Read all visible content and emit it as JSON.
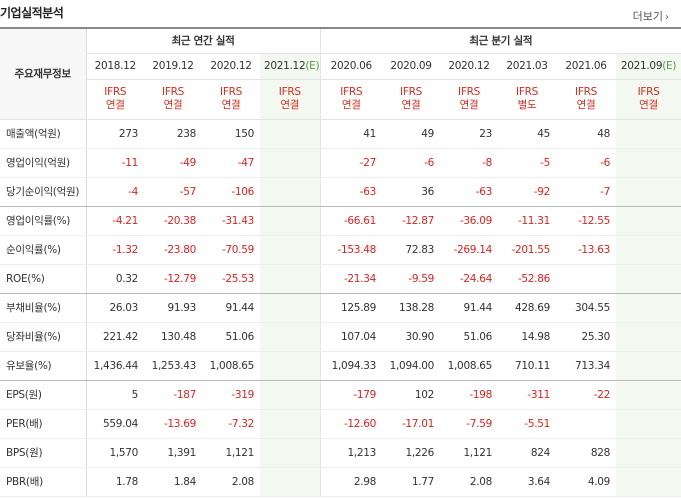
{
  "title": "기업실적분석",
  "more_label": "더보기",
  "header": {
    "row_label": "주요재무정보",
    "annual_group": "최근 연간 실적",
    "quarter_group": "최근 분기 실적",
    "columns": [
      {
        "date": "2018.12",
        "ifrs": "IFRS",
        "basis": "연결",
        "estimate": false
      },
      {
        "date": "2019.12",
        "ifrs": "IFRS",
        "basis": "연결",
        "estimate": false
      },
      {
        "date": "2020.12",
        "ifrs": "IFRS",
        "basis": "연결",
        "estimate": false
      },
      {
        "date": "2021.12(E)",
        "ifrs": "IFRS",
        "basis": "연결",
        "estimate": true
      },
      {
        "date": "2020.06",
        "ifrs": "IFRS",
        "basis": "연결",
        "estimate": false
      },
      {
        "date": "2020.09",
        "ifrs": "IFRS",
        "basis": "연결",
        "estimate": false
      },
      {
        "date": "2020.12",
        "ifrs": "IFRS",
        "basis": "연결",
        "estimate": false
      },
      {
        "date": "2021.03",
        "ifrs": "IFRS",
        "basis": "별도",
        "estimate": false
      },
      {
        "date": "2021.06",
        "ifrs": "IFRS",
        "basis": "연결",
        "estimate": false
      },
      {
        "date": "2021.09(E)",
        "ifrs": "IFRS",
        "basis": "연결",
        "estimate": true
      }
    ]
  },
  "rows": [
    {
      "label": "매출액(억원)",
      "values": [
        "273",
        "238",
        "150",
        "",
        "41",
        "49",
        "23",
        "45",
        "48",
        ""
      ],
      "group_end": false
    },
    {
      "label": "영업이익(억원)",
      "values": [
        "-11",
        "-49",
        "-47",
        "",
        "-27",
        "-6",
        "-8",
        "-5",
        "-6",
        ""
      ],
      "group_end": false
    },
    {
      "label": "당기순이익(억원)",
      "values": [
        "-4",
        "-57",
        "-106",
        "",
        "-63",
        "36",
        "-63",
        "-92",
        "-7",
        ""
      ],
      "group_end": true
    },
    {
      "label": "영업이익률(%)",
      "values": [
        "-4.21",
        "-20.38",
        "-31.43",
        "",
        "-66.61",
        "-12.87",
        "-36.09",
        "-11.31",
        "-12.55",
        ""
      ],
      "group_end": false
    },
    {
      "label": "순이익률(%)",
      "values": [
        "-1.32",
        "-23.80",
        "-70.59",
        "",
        "-153.48",
        "72.83",
        "-269.14",
        "-201.55",
        "-13.63",
        ""
      ],
      "group_end": false
    },
    {
      "label": "ROE(%)",
      "values": [
        "0.32",
        "-12.79",
        "-25.53",
        "",
        "-21.34",
        "-9.59",
        "-24.64",
        "-52.86",
        "",
        ""
      ],
      "group_end": true
    },
    {
      "label": "부채비율(%)",
      "values": [
        "26.03",
        "91.93",
        "91.44",
        "",
        "125.89",
        "138.28",
        "91.44",
        "428.69",
        "304.55",
        ""
      ],
      "group_end": false
    },
    {
      "label": "당좌비율(%)",
      "values": [
        "221.42",
        "130.48",
        "51.06",
        "",
        "107.04",
        "30.90",
        "51.06",
        "14.98",
        "25.30",
        ""
      ],
      "group_end": false
    },
    {
      "label": "유보율(%)",
      "values": [
        "1,436.44",
        "1,253.43",
        "1,008.65",
        "",
        "1,094.33",
        "1,094.00",
        "1,008.65",
        "710.11",
        "713.34",
        ""
      ],
      "group_end": true
    },
    {
      "label": "EPS(원)",
      "values": [
        "5",
        "-187",
        "-319",
        "",
        "-179",
        "102",
        "-198",
        "-311",
        "-22",
        ""
      ],
      "group_end": false
    },
    {
      "label": "PER(배)",
      "values": [
        "559.04",
        "-13.69",
        "-7.32",
        "",
        "-12.60",
        "-17.01",
        "-7.59",
        "-5.51",
        "",
        ""
      ],
      "group_end": false
    },
    {
      "label": "BPS(원)",
      "values": [
        "1,570",
        "1,391",
        "1,121",
        "",
        "1,213",
        "1,226",
        "1,121",
        "824",
        "828",
        ""
      ],
      "group_end": false
    },
    {
      "label": "PBR(배)",
      "values": [
        "1.78",
        "1.84",
        "2.08",
        "",
        "2.98",
        "1.77",
        "2.08",
        "3.64",
        "4.09",
        ""
      ],
      "group_end": false
    }
  ]
}
